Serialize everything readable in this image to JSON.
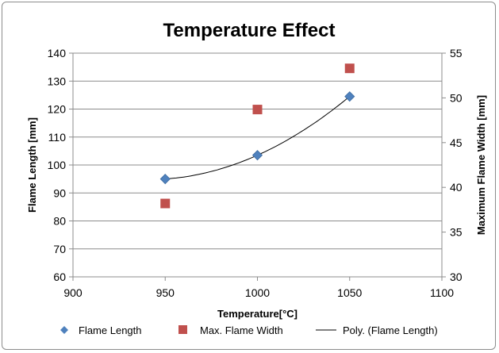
{
  "chart_data": {
    "type": "scatter",
    "title": "Temperature Effect",
    "xlabel": "Temperature[°C]",
    "ylabel": "Flame Length [mm]",
    "y2label": "Maximum Flame Width [mm]",
    "xlim": [
      900,
      1100
    ],
    "xticks": [
      900,
      950,
      1000,
      1050,
      1100
    ],
    "ylim": [
      60,
      140
    ],
    "yticks": [
      60,
      70,
      80,
      90,
      100,
      110,
      120,
      130,
      140
    ],
    "y2lim": [
      30,
      55
    ],
    "y2ticks": [
      30,
      35,
      40,
      45,
      50,
      55
    ],
    "grid": "horizontal",
    "legend_position": "bottom",
    "series": [
      {
        "name": "Flame Length",
        "axis": "left",
        "marker": "diamond",
        "color": "#4f81bd",
        "x": [
          950,
          1000,
          1050
        ],
        "y": [
          95,
          103.5,
          124.5
        ]
      },
      {
        "name": "Max. Flame Width",
        "axis": "right",
        "marker": "square",
        "color": "#c0504d",
        "x": [
          950,
          1000,
          1050
        ],
        "y": [
          38.2,
          48.7,
          53.3
        ]
      },
      {
        "name": "Poly. (Flame Length)",
        "axis": "left",
        "type": "trendline",
        "color": "#000000",
        "fit_of": "Flame Length"
      }
    ]
  }
}
